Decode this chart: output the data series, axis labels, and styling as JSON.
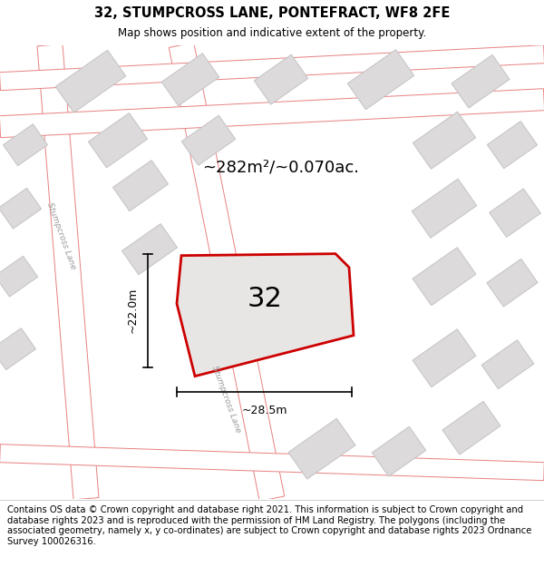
{
  "title": "32, STUMPCROSS LANE, PONTEFRACT, WF8 2FE",
  "subtitle": "Map shows position and indicative extent of the property.",
  "footer": "Contains OS data © Crown copyright and database right 2021. This information is subject to Crown copyright and database rights 2023 and is reproduced with the permission of HM Land Registry. The polygons (including the associated geometry, namely x, y co-ordinates) are subject to Crown copyright and database rights 2023 Ordnance Survey 100026316.",
  "area_text": "~282m²/~0.070ac.",
  "label": "32",
  "dim_width": "~28.5m",
  "dim_height": "~22.0m",
  "map_bg": "#f2f0f0",
  "road_edge_color": "#e88080",
  "road_fill_color": "#ffffff",
  "building_fill": "#dcdada",
  "building_edge": "#c8c6c6",
  "highlight_color": "#cc0000",
  "highlight_fill": "#e8e6e4",
  "street_label_color": "#999999",
  "title_fontsize": 10.5,
  "subtitle_fontsize": 8.5,
  "footer_fontsize": 7.2,
  "label_fontsize": 22,
  "area_fontsize": 13,
  "dim_fontsize": 9
}
